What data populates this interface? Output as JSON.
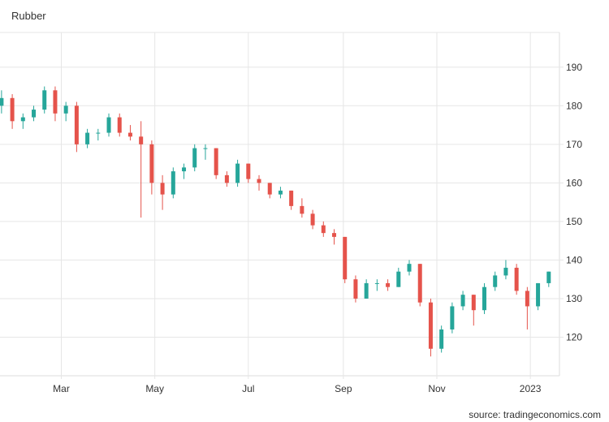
{
  "chart_data": {
    "type": "candlestick",
    "title": "Rubber",
    "source": "source: tradingeconomics.com",
    "xlabel": "",
    "ylabel": "",
    "ylim": [
      110,
      199
    ],
    "yticks": [
      120,
      130,
      140,
      150,
      160,
      170,
      180,
      190
    ],
    "xticks": [
      {
        "label": "Mar",
        "date": "2022-03-01"
      },
      {
        "label": "May",
        "date": "2022-05-01"
      },
      {
        "label": "Jul",
        "date": "2022-07-01"
      },
      {
        "label": "Sep",
        "date": "2022-09-01"
      },
      {
        "label": "Nov",
        "date": "2022-11-01"
      },
      {
        "label": "2023",
        "date": "2023-01-01"
      }
    ],
    "x_range": [
      "2022-01-20",
      "2023-01-20"
    ],
    "grid": true,
    "colors": {
      "up": "#26a69a",
      "down": "#e5534b",
      "grid": "#e6e6e6"
    },
    "columns": [
      "date",
      "open",
      "high",
      "low",
      "close"
    ],
    "candles": [
      [
        "2022-01-21",
        180,
        184,
        178,
        182
      ],
      [
        "2022-01-28",
        182,
        183,
        174,
        176
      ],
      [
        "2022-02-04",
        176,
        178,
        174,
        177
      ],
      [
        "2022-02-11",
        177,
        180,
        176,
        179
      ],
      [
        "2022-02-18",
        179,
        185,
        178,
        184
      ],
      [
        "2022-02-25",
        184,
        185,
        176,
        178
      ],
      [
        "2022-03-04",
        178,
        181,
        176,
        180
      ],
      [
        "2022-03-11",
        180,
        181,
        168,
        170
      ],
      [
        "2022-03-18",
        170,
        174,
        169,
        173
      ],
      [
        "2022-03-25",
        173,
        174,
        171,
        173
      ],
      [
        "2022-04-01",
        173,
        178,
        172,
        177
      ],
      [
        "2022-04-08",
        177,
        178,
        172,
        173
      ],
      [
        "2022-04-15",
        173,
        175,
        171,
        172
      ],
      [
        "2022-04-22",
        172,
        176,
        151,
        170
      ],
      [
        "2022-04-29",
        170,
        171,
        157,
        160
      ],
      [
        "2022-05-06",
        160,
        162,
        153,
        157
      ],
      [
        "2022-05-13",
        157,
        164,
        156,
        163
      ],
      [
        "2022-05-20",
        163,
        165,
        161,
        164
      ],
      [
        "2022-05-27",
        164,
        170,
        163,
        169
      ],
      [
        "2022-06-03",
        169,
        170,
        166,
        169
      ],
      [
        "2022-06-10",
        169,
        169,
        161,
        162
      ],
      [
        "2022-06-17",
        162,
        163,
        159,
        160
      ],
      [
        "2022-06-24",
        160,
        166,
        159,
        165
      ],
      [
        "2022-07-01",
        165,
        165,
        160,
        161
      ],
      [
        "2022-07-08",
        161,
        162,
        158,
        160
      ],
      [
        "2022-07-15",
        160,
        160,
        156,
        157
      ],
      [
        "2022-07-22",
        157,
        159,
        156,
        158
      ],
      [
        "2022-07-29",
        158,
        158,
        153,
        154
      ],
      [
        "2022-08-05",
        154,
        156,
        151,
        152
      ],
      [
        "2022-08-12",
        152,
        153,
        148,
        149
      ],
      [
        "2022-08-19",
        149,
        150,
        146,
        147
      ],
      [
        "2022-08-26",
        147,
        148,
        144,
        146
      ],
      [
        "2022-09-02",
        146,
        146,
        134,
        135
      ],
      [
        "2022-09-09",
        135,
        136,
        129,
        130
      ],
      [
        "2022-09-16",
        130,
        135,
        130,
        134
      ],
      [
        "2022-09-23",
        134,
        135,
        132,
        134
      ],
      [
        "2022-09-30",
        134,
        135,
        132,
        133
      ],
      [
        "2022-10-07",
        133,
        138,
        133,
        137
      ],
      [
        "2022-10-14",
        137,
        140,
        136,
        139
      ],
      [
        "2022-10-21",
        139,
        139,
        128,
        129
      ],
      [
        "2022-10-28",
        129,
        130,
        115,
        117
      ],
      [
        "2022-11-04",
        117,
        123,
        116,
        122
      ],
      [
        "2022-11-11",
        122,
        129,
        121,
        128
      ],
      [
        "2022-11-18",
        128,
        132,
        127,
        131
      ],
      [
        "2022-11-25",
        131,
        131,
        123,
        127
      ],
      [
        "2022-12-02",
        127,
        134,
        126,
        133
      ],
      [
        "2022-12-09",
        133,
        137,
        132,
        136
      ],
      [
        "2022-12-16",
        136,
        140,
        135,
        138
      ],
      [
        "2022-12-23",
        138,
        139,
        131,
        132
      ],
      [
        "2022-12-30",
        132,
        133,
        122,
        128
      ],
      [
        "2023-01-06",
        128,
        134,
        127,
        134
      ],
      [
        "2023-01-13",
        134,
        137,
        133,
        137
      ]
    ]
  }
}
